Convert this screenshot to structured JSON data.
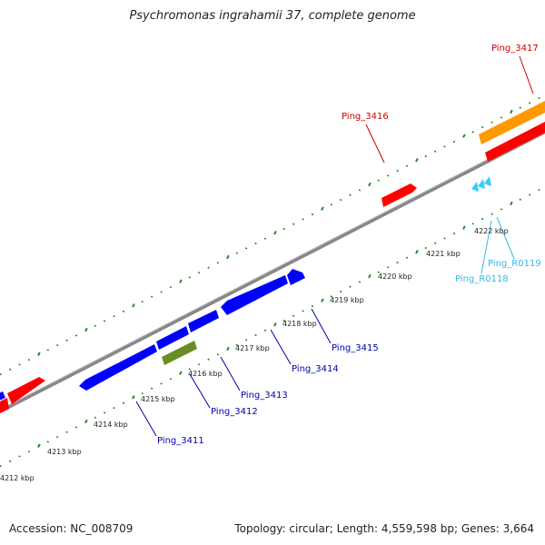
{
  "title": "Psychromonas ingrahamii 37, complete genome",
  "footer": {
    "accession": "Accession: NC_008709",
    "summary": "Topology: circular; Length: 4,559,598 bp; Genes: 3,664"
  },
  "colors": {
    "forward_gene": "#ff0000",
    "rrna": "#ff9900",
    "reverse_gene": "#0000ff",
    "reverse_alt_gene": "#6b8e23",
    "trna": "#33ccff",
    "forward_label": "#cc0000",
    "reverse_label": "#0000aa",
    "trna_label": "#33bbee",
    "tick": "#228b22",
    "backbone": "#888888"
  },
  "scale_labels": [
    "4212 kbp",
    "4213 kbp",
    "4214 kbp",
    "4215 kbp",
    "4216 kbp",
    "4217 kbp",
    "4218 kbp",
    "4219 kbp",
    "4220 kbp",
    "4221 kbp",
    "4222 kbp"
  ],
  "forward_labels": [
    "Ping_3416",
    "Ping_3417"
  ],
  "reverse_labels": [
    "Ping_3411",
    "Ping_3412",
    "Ping_3413",
    "Ping_3414",
    "Ping_3415"
  ],
  "trna_labels": [
    "Ping_R0118",
    "Ping_R0119"
  ]
}
